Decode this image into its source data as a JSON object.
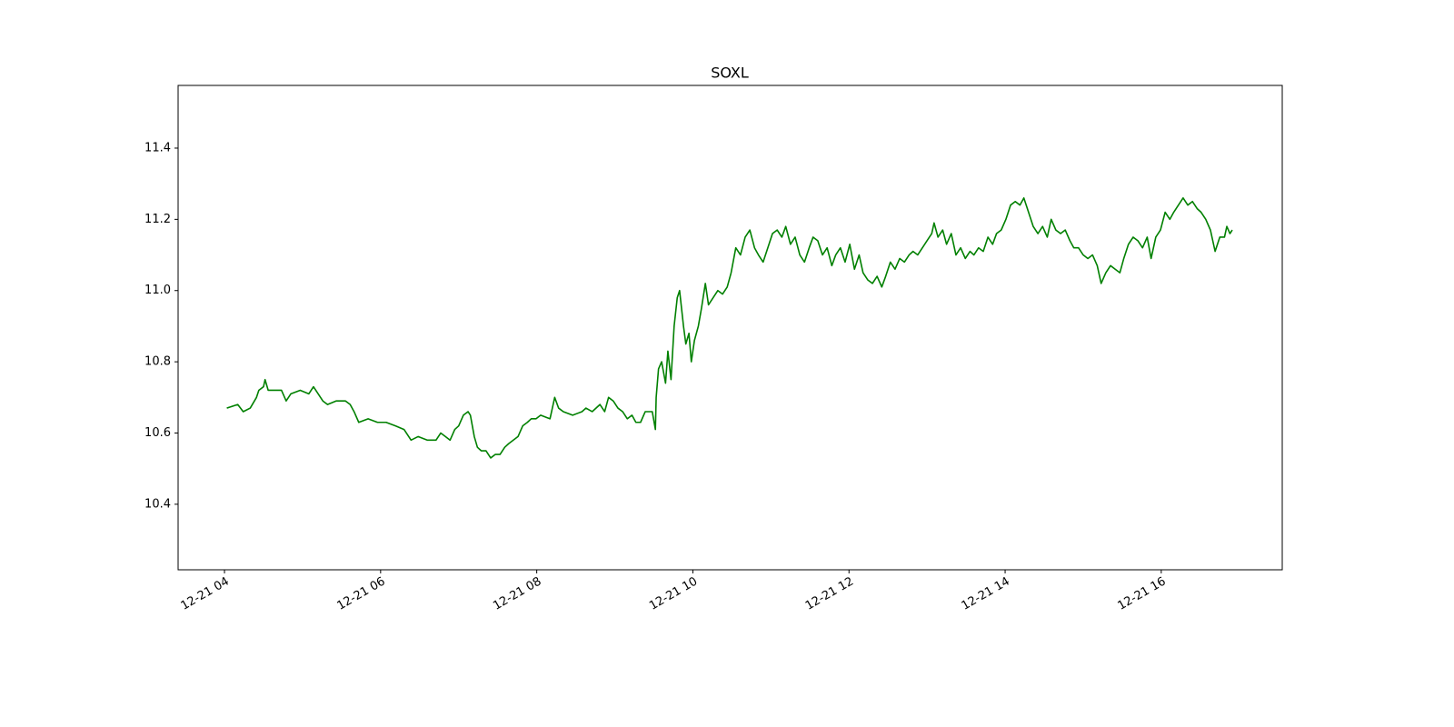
{
  "chart_data": {
    "type": "line",
    "title": "SOXL",
    "x": [
      4.03,
      4.17,
      4.24,
      4.33,
      4.41,
      4.44,
      4.5,
      4.52,
      4.56,
      4.73,
      4.79,
      4.85,
      4.97,
      5.08,
      5.14,
      5.26,
      5.32,
      5.43,
      5.55,
      5.61,
      5.66,
      5.72,
      5.84,
      5.96,
      6.07,
      6.19,
      6.3,
      6.39,
      6.48,
      6.6,
      6.71,
      6.77,
      6.83,
      6.89,
      6.95,
      7.0,
      7.06,
      7.12,
      7.15,
      7.2,
      7.24,
      7.29,
      7.35,
      7.41,
      7.47,
      7.53,
      7.59,
      7.64,
      7.76,
      7.82,
      7.88,
      7.93,
      7.99,
      8.05,
      8.17,
      8.23,
      8.28,
      8.34,
      8.46,
      8.58,
      8.63,
      8.71,
      8.81,
      8.87,
      8.92,
      8.98,
      9.04,
      9.1,
      9.16,
      9.22,
      9.27,
      9.33,
      9.39,
      9.48,
      9.52,
      9.53,
      9.56,
      9.6,
      9.65,
      9.68,
      9.72,
      9.76,
      9.8,
      9.83,
      9.88,
      9.91,
      9.95,
      9.98,
      10.02,
      10.07,
      10.11,
      10.16,
      10.2,
      10.26,
      10.32,
      10.38,
      10.44,
      10.49,
      10.55,
      10.61,
      10.67,
      10.73,
      10.79,
      10.84,
      10.9,
      10.96,
      11.02,
      11.08,
      11.14,
      11.19,
      11.25,
      11.31,
      11.37,
      11.43,
      11.49,
      11.54,
      11.6,
      11.66,
      11.72,
      11.78,
      11.83,
      11.89,
      11.95,
      12.01,
      12.07,
      12.13,
      12.18,
      12.24,
      12.3,
      12.36,
      12.42,
      12.47,
      12.53,
      12.59,
      12.65,
      12.71,
      12.77,
      12.82,
      12.88,
      12.94,
      13.0,
      13.06,
      13.09,
      13.14,
      13.2,
      13.25,
      13.31,
      13.37,
      13.43,
      13.49,
      13.55,
      13.6,
      13.66,
      13.72,
      13.78,
      13.84,
      13.89,
      13.95,
      14.01,
      14.07,
      14.13,
      14.19,
      14.24,
      14.3,
      14.36,
      14.42,
      14.48,
      14.54,
      14.59,
      14.65,
      14.71,
      14.77,
      14.83,
      14.88,
      14.94,
      15.0,
      15.06,
      15.12,
      15.18,
      15.23,
      15.29,
      15.35,
      15.41,
      15.47,
      15.52,
      15.58,
      15.64,
      15.7,
      15.76,
      15.82,
      15.87,
      15.93,
      15.99,
      16.05,
      16.11,
      16.16,
      16.22,
      16.28,
      16.34,
      16.4,
      16.46,
      16.51,
      16.57,
      16.63,
      16.69,
      16.75,
      16.81,
      16.84,
      16.88,
      16.91
    ],
    "values": [
      10.67,
      10.68,
      10.66,
      10.67,
      10.7,
      10.72,
      10.73,
      10.75,
      10.72,
      10.72,
      10.69,
      10.71,
      10.72,
      10.71,
      10.73,
      10.69,
      10.68,
      10.69,
      10.69,
      10.68,
      10.66,
      10.63,
      10.64,
      10.63,
      10.63,
      10.62,
      10.61,
      10.58,
      10.59,
      10.58,
      10.58,
      10.6,
      10.59,
      10.58,
      10.61,
      10.62,
      10.65,
      10.66,
      10.65,
      10.59,
      10.56,
      10.55,
      10.55,
      10.53,
      10.54,
      10.54,
      10.56,
      10.57,
      10.59,
      10.62,
      10.63,
      10.64,
      10.64,
      10.65,
      10.64,
      10.7,
      10.67,
      10.66,
      10.65,
      10.66,
      10.67,
      10.66,
      10.68,
      10.66,
      10.7,
      10.69,
      10.67,
      10.66,
      10.64,
      10.65,
      10.63,
      10.63,
      10.66,
      10.66,
      10.61,
      10.7,
      10.78,
      10.8,
      10.74,
      10.83,
      10.75,
      10.9,
      10.98,
      11.0,
      10.9,
      10.85,
      10.88,
      10.8,
      10.86,
      10.9,
      10.95,
      11.02,
      10.96,
      10.98,
      11.0,
      10.99,
      11.01,
      11.05,
      11.12,
      11.1,
      11.15,
      11.17,
      11.12,
      11.1,
      11.08,
      11.12,
      11.16,
      11.17,
      11.15,
      11.18,
      11.13,
      11.15,
      11.1,
      11.08,
      11.12,
      11.15,
      11.14,
      11.1,
      11.12,
      11.07,
      11.1,
      11.12,
      11.08,
      11.13,
      11.06,
      11.1,
      11.05,
      11.03,
      11.02,
      11.04,
      11.01,
      11.04,
      11.08,
      11.06,
      11.09,
      11.08,
      11.1,
      11.11,
      11.1,
      11.12,
      11.14,
      11.16,
      11.19,
      11.15,
      11.17,
      11.13,
      11.16,
      11.1,
      11.12,
      11.09,
      11.11,
      11.1,
      11.12,
      11.11,
      11.15,
      11.13,
      11.16,
      11.17,
      11.2,
      11.24,
      11.25,
      11.24,
      11.26,
      11.22,
      11.18,
      11.16,
      11.18,
      11.15,
      11.2,
      11.17,
      11.16,
      11.17,
      11.14,
      11.12,
      11.12,
      11.1,
      11.09,
      11.1,
      11.07,
      11.02,
      11.05,
      11.07,
      11.06,
      11.05,
      11.09,
      11.13,
      11.15,
      11.14,
      11.12,
      11.15,
      11.09,
      11.15,
      11.17,
      11.22,
      11.2,
      11.22,
      11.24,
      11.26,
      11.24,
      11.25,
      11.23,
      11.22,
      11.2,
      11.17,
      11.11,
      11.15,
      11.15,
      11.18,
      11.16,
      11.17
    ],
    "color": "#008000",
    "xlim": [
      3.406,
      17.55
    ],
    "xticks": [
      {
        "value": 4,
        "label": "12-21 04"
      },
      {
        "value": 6,
        "label": "12-21 06"
      },
      {
        "value": 8,
        "label": "12-21 08"
      },
      {
        "value": 10,
        "label": "12-21 10"
      },
      {
        "value": 12,
        "label": "12-21 12"
      },
      {
        "value": 14,
        "label": "12-21 14"
      },
      {
        "value": 16,
        "label": "12-21 16"
      }
    ],
    "ylim": [
      10.216,
      11.576
    ],
    "yticks": [
      10.4,
      10.6,
      10.8,
      {
        "value": 11,
        "label": "11.0"
      },
      11.2,
      11.4
    ]
  }
}
